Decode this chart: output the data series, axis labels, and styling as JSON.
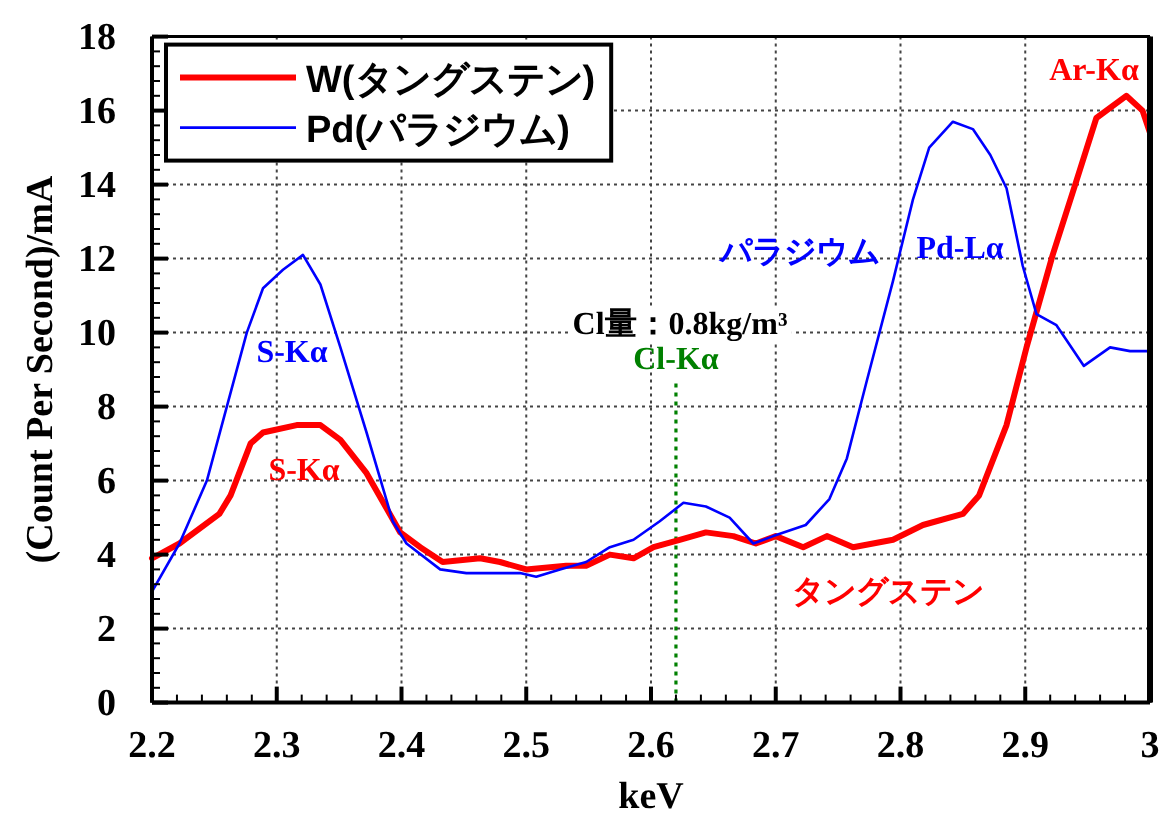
{
  "chart_data": {
    "type": "line",
    "xlabel": "keV",
    "ylabel": "(Count Per Second)/mA",
    "xlim": [
      2.2,
      3
    ],
    "ylim": [
      0,
      18
    ],
    "xticks": [
      2.2,
      2.3,
      2.4,
      2.5,
      2.6,
      2.7,
      2.8,
      2.9,
      3
    ],
    "yticks": [
      0,
      2,
      4,
      6,
      8,
      10,
      12,
      14,
      16,
      18
    ],
    "grid": true,
    "legend": "top left",
    "series": [
      {
        "name": "W(タングステン)",
        "color": "#ff0000",
        "x": [
          2.2,
          2.222,
          2.254,
          2.263,
          2.279,
          2.289,
          2.316,
          2.335,
          2.351,
          2.372,
          2.399,
          2.415,
          2.433,
          2.463,
          2.479,
          2.5,
          2.532,
          2.548,
          2.567,
          2.586,
          2.602,
          2.623,
          2.644,
          2.666,
          2.684,
          2.7,
          2.722,
          2.741,
          2.762,
          2.794,
          2.818,
          2.85,
          2.863,
          2.885,
          2.901,
          2.922,
          2.941,
          2.957,
          2.981,
          2.994,
          3.0
        ],
        "values": [
          3.9,
          4.3,
          5.1,
          5.6,
          7.0,
          7.3,
          7.5,
          7.5,
          7.1,
          6.2,
          4.6,
          4.2,
          3.8,
          3.9,
          3.8,
          3.6,
          3.7,
          3.7,
          4.0,
          3.9,
          4.2,
          4.4,
          4.6,
          4.5,
          4.3,
          4.5,
          4.2,
          4.5,
          4.2,
          4.4,
          4.8,
          5.1,
          5.6,
          7.5,
          9.6,
          12.1,
          14.1,
          15.8,
          16.4,
          16.0,
          15.4
        ]
      },
      {
        "name": "Pd(パラジウム)",
        "color": "#0000ff",
        "x": [
          2.2,
          2.222,
          2.244,
          2.26,
          2.276,
          2.289,
          2.305,
          2.321,
          2.335,
          2.351,
          2.372,
          2.393,
          2.404,
          2.431,
          2.452,
          2.474,
          2.495,
          2.508,
          2.527,
          2.548,
          2.567,
          2.586,
          2.607,
          2.626,
          2.644,
          2.663,
          2.682,
          2.698,
          2.724,
          2.743,
          2.757,
          2.773,
          2.794,
          2.81,
          2.823,
          2.842,
          2.858,
          2.872,
          2.885,
          2.898,
          2.909,
          2.925,
          2.933,
          2.947,
          2.968,
          2.984,
          3.0
        ],
        "values": [
          3.0,
          4.3,
          6.0,
          8.0,
          10.0,
          11.2,
          11.7,
          12.1,
          11.3,
          9.6,
          7.3,
          4.9,
          4.3,
          3.6,
          3.5,
          3.5,
          3.5,
          3.4,
          3.6,
          3.8,
          4.2,
          4.4,
          4.9,
          5.4,
          5.3,
          5.0,
          4.3,
          4.5,
          4.8,
          5.5,
          6.6,
          8.7,
          11.4,
          13.6,
          15.0,
          15.7,
          15.5,
          14.8,
          13.9,
          11.8,
          10.5,
          10.2,
          9.8,
          9.1,
          9.6,
          9.5,
          9.5
        ]
      }
    ],
    "ref_lines": [
      {
        "axis": "x",
        "value": 2.62,
        "label": "Cl-Kα",
        "color": "#008000",
        "line_style": "dotted"
      }
    ],
    "annotations": [
      "S-Kα",
      "S-Kα",
      "パラジウム",
      "Pd-Lα",
      "Ar-Kα",
      "タングステン",
      "Cl量：0.8kg/m³"
    ]
  }
}
